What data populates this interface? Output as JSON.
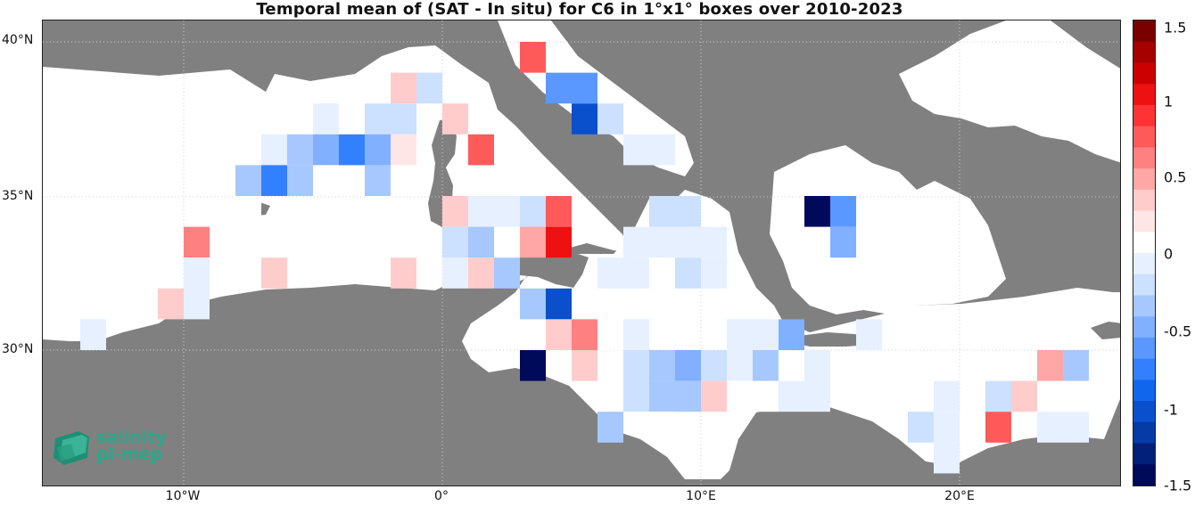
{
  "title": "Temporal mean of (SAT - In situ) for C6 in 1°x1° boxes over 2010-2023",
  "map": {
    "sea_color": "#ffffff",
    "land_color": "#808080",
    "y_ticks": [
      "40°N",
      "35°N",
      "30°N"
    ],
    "x_ticks": [
      "10°W",
      "0°",
      "10°E",
      "20°E"
    ]
  },
  "colorbar": {
    "ticks": [
      "1.5",
      "1",
      "0.5",
      "0",
      "-0.5",
      "-1",
      "-1.5"
    ],
    "range": [
      -1.5,
      1.5
    ],
    "colors": [
      "#7a0000",
      "#a60000",
      "#cc0000",
      "#ee1111",
      "#ff3333",
      "#ff5a5a",
      "#ff8080",
      "#ffa6a6",
      "#ffcccc",
      "#ffe6e6",
      "#ffffff",
      "#e6f0ff",
      "#cce0ff",
      "#a6c8ff",
      "#80b0ff",
      "#5a98ff",
      "#3380ff",
      "#1166ee",
      "#0a4fcc",
      "#063aa6",
      "#021f7a",
      "#000a5a"
    ]
  },
  "logo": {
    "line1": "salinity",
    "line2": "pi-mep"
  },
  "boxes": [
    {
      "lon": 3.5,
      "lat": 39.5,
      "v": 0.8
    },
    {
      "lon": 4.5,
      "lat": 38.5,
      "v": -0.6
    },
    {
      "lon": 5.5,
      "lat": 38.5,
      "v": -0.6
    },
    {
      "lon": 5.5,
      "lat": 37.5,
      "v": -1.0
    },
    {
      "lon": 6.5,
      "lat": 37.5,
      "v": -0.2
    },
    {
      "lon": -1.5,
      "lat": 38.5,
      "v": 0.3
    },
    {
      "lon": -0.5,
      "lat": 38.5,
      "v": -0.2
    },
    {
      "lon": 0.5,
      "lat": 37.5,
      "v": 0.4
    },
    {
      "lon": 1.5,
      "lat": 36.5,
      "v": 0.7
    },
    {
      "lon": 7.5,
      "lat": 36.5,
      "v": -0.1
    },
    {
      "lon": 8.5,
      "lat": 36.5,
      "v": -0.1
    },
    {
      "lon": -4.5,
      "lat": 37.5,
      "v": -0.1
    },
    {
      "lon": -2.5,
      "lat": 37.5,
      "v": -0.2
    },
    {
      "lon": -1.5,
      "lat": 37.5,
      "v": -0.2
    },
    {
      "lon": -6.5,
      "lat": 36.5,
      "v": -0.1
    },
    {
      "lon": -5.5,
      "lat": 36.5,
      "v": -0.3
    },
    {
      "lon": -4.5,
      "lat": 36.5,
      "v": -0.5
    },
    {
      "lon": -3.5,
      "lat": 36.5,
      "v": -0.8
    },
    {
      "lon": -2.5,
      "lat": 36.5,
      "v": -0.5
    },
    {
      "lon": -1.5,
      "lat": 36.5,
      "v": 0.2
    },
    {
      "lon": -7.5,
      "lat": 35.5,
      "v": -0.4
    },
    {
      "lon": -6.5,
      "lat": 35.5,
      "v": -0.8
    },
    {
      "lon": -5.5,
      "lat": 35.5,
      "v": -0.4
    },
    {
      "lon": -4.5,
      "lat": 35.5,
      "v": 0.1
    },
    {
      "lon": -2.5,
      "lat": 35.5,
      "v": -0.3
    },
    {
      "lon": 3.5,
      "lat": 35.5,
      "v": 0.1
    },
    {
      "lon": -7.5,
      "lat": 34.5,
      "v": 0.1
    },
    {
      "lon": -2.5,
      "lat": 34.5,
      "v": 0.1
    },
    {
      "lon": 0.5,
      "lat": 34.5,
      "v": 0.4
    },
    {
      "lon": 1.5,
      "lat": 34.5,
      "v": -0.1
    },
    {
      "lon": 2.5,
      "lat": 34.5,
      "v": -0.1
    },
    {
      "lon": 3.5,
      "lat": 34.5,
      "v": -0.2
    },
    {
      "lon": 4.5,
      "lat": 34.5,
      "v": 0.7
    },
    {
      "lon": 8.5,
      "lat": 34.5,
      "v": -0.2
    },
    {
      "lon": 9.5,
      "lat": 34.5,
      "v": -0.2
    },
    {
      "lon": 14.5,
      "lat": 34.5,
      "v": -1.4
    },
    {
      "lon": 15.5,
      "lat": 34.5,
      "v": -0.6
    },
    {
      "lon": -9.5,
      "lat": 33.5,
      "v": 0.6
    },
    {
      "lon": -3.5,
      "lat": 33.5,
      "v": 0.1
    },
    {
      "lon": 0.5,
      "lat": 33.5,
      "v": -0.2
    },
    {
      "lon": 1.5,
      "lat": 33.5,
      "v": -0.3
    },
    {
      "lon": 3.5,
      "lat": 33.5,
      "v": 0.5
    },
    {
      "lon": 4.5,
      "lat": 33.5,
      "v": 1.0
    },
    {
      "lon": 7.5,
      "lat": 33.5,
      "v": -0.1
    },
    {
      "lon": 8.5,
      "lat": 33.5,
      "v": -0.1
    },
    {
      "lon": 9.5,
      "lat": 33.5,
      "v": -0.1
    },
    {
      "lon": 10.5,
      "lat": 33.5,
      "v": -0.1
    },
    {
      "lon": 15.5,
      "lat": 33.5,
      "v": -0.5
    },
    {
      "lon": -9.5,
      "lat": 32.5,
      "v": -0.1
    },
    {
      "lon": -8.5,
      "lat": 32.5,
      "v": 0.1
    },
    {
      "lon": -6.5,
      "lat": 32.5,
      "v": 0.3
    },
    {
      "lon": -1.5,
      "lat": 32.5,
      "v": 0.3
    },
    {
      "lon": 0.5,
      "lat": 32.5,
      "v": -0.1
    },
    {
      "lon": 1.5,
      "lat": 32.5,
      "v": 0.3
    },
    {
      "lon": 2.5,
      "lat": 32.5,
      "v": -0.4
    },
    {
      "lon": 6.5,
      "lat": 32.5,
      "v": -0.1
    },
    {
      "lon": 7.5,
      "lat": 32.5,
      "v": -0.1
    },
    {
      "lon": 9.5,
      "lat": 32.5,
      "v": -0.2
    },
    {
      "lon": 10.5,
      "lat": 32.5,
      "v": -0.1
    },
    {
      "lon": -10.5,
      "lat": 31.5,
      "v": 0.3
    },
    {
      "lon": -9.5,
      "lat": 31.5,
      "v": -0.1
    },
    {
      "lon": 3.5,
      "lat": 31.5,
      "v": -0.4
    },
    {
      "lon": 4.5,
      "lat": 31.5,
      "v": -1.0
    },
    {
      "lon": 5.5,
      "lat": 31.5,
      "v": 0.1
    },
    {
      "lon": -13.5,
      "lat": 30.5,
      "v": -0.1
    },
    {
      "lon": 4.5,
      "lat": 30.5,
      "v": 0.3
    },
    {
      "lon": 5.5,
      "lat": 30.5,
      "v": 0.6
    },
    {
      "lon": 6.5,
      "lat": 30.5,
      "v": 0.1
    },
    {
      "lon": 7.5,
      "lat": 30.5,
      "v": -0.1
    },
    {
      "lon": 11.5,
      "lat": 30.5,
      "v": -0.1
    },
    {
      "lon": 12.5,
      "lat": 30.5,
      "v": -0.1
    },
    {
      "lon": 13.5,
      "lat": 30.5,
      "v": -0.5
    },
    {
      "lon": 16.5,
      "lat": 30.5,
      "v": -0.1
    },
    {
      "lon": 3.5,
      "lat": 29.5,
      "v": -1.5
    },
    {
      "lon": 5.5,
      "lat": 29.5,
      "v": 0.4
    },
    {
      "lon": 7.5,
      "lat": 29.5,
      "v": -0.2
    },
    {
      "lon": 8.5,
      "lat": 29.5,
      "v": -0.3
    },
    {
      "lon": 9.5,
      "lat": 29.5,
      "v": -0.5
    },
    {
      "lon": 10.5,
      "lat": 29.5,
      "v": -0.2
    },
    {
      "lon": 11.5,
      "lat": 29.5,
      "v": -0.1
    },
    {
      "lon": 12.5,
      "lat": 29.5,
      "v": -0.3
    },
    {
      "lon": 14.5,
      "lat": 29.5,
      "v": -0.1
    },
    {
      "lon": 23.5,
      "lat": 29.5,
      "v": 0.5
    },
    {
      "lon": 24.5,
      "lat": 29.5,
      "v": -0.4
    },
    {
      "lon": 7.5,
      "lat": 28.5,
      "v": -0.2
    },
    {
      "lon": 8.5,
      "lat": 28.5,
      "v": -0.3
    },
    {
      "lon": 9.5,
      "lat": 28.5,
      "v": -0.3
    },
    {
      "lon": 10.5,
      "lat": 28.5,
      "v": 0.3
    },
    {
      "lon": 11.5,
      "lat": 28.5,
      "v": 0.1
    },
    {
      "lon": 12.5,
      "lat": 28.5,
      "v": 0.1
    },
    {
      "lon": 13.5,
      "lat": 28.5,
      "v": -0.1
    },
    {
      "lon": 14.5,
      "lat": 28.5,
      "v": -0.1
    },
    {
      "lon": 17.5,
      "lat": 28.5,
      "v": 0.1
    },
    {
      "lon": 19.5,
      "lat": 28.5,
      "v": -0.1
    },
    {
      "lon": 21.5,
      "lat": 28.5,
      "v": -0.2
    },
    {
      "lon": 22.5,
      "lat": 28.5,
      "v": 0.3
    },
    {
      "lon": 6.5,
      "lat": 27.5,
      "v": -0.4
    },
    {
      "lon": 8.5,
      "lat": 27.5,
      "v": 0.1
    },
    {
      "lon": 18.5,
      "lat": 27.5,
      "v": -0.2
    },
    {
      "lon": 19.5,
      "lat": 27.5,
      "v": -0.1
    },
    {
      "lon": 20.5,
      "lat": 27.5,
      "v": 0.1
    },
    {
      "lon": 21.5,
      "lat": 27.5,
      "v": 0.7
    },
    {
      "lon": 23.5,
      "lat": 27.5,
      "v": -0.1
    },
    {
      "lon": 24.5,
      "lat": 27.5,
      "v": -0.1
    },
    {
      "lon": 19.5,
      "lat": 26.5,
      "v": -0.1
    }
  ]
}
